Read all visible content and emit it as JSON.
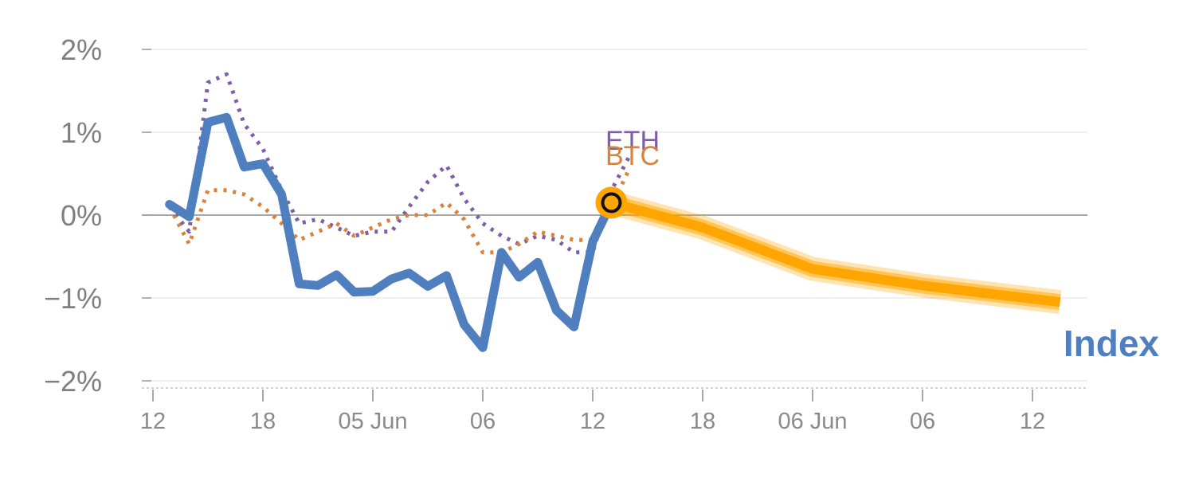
{
  "chart_data": {
    "type": "line",
    "title": "",
    "xlabel": "",
    "ylabel": "",
    "ylim": [
      -2,
      2
    ],
    "y_ticks": [
      {
        "value": 2,
        "label": "2%"
      },
      {
        "value": 1,
        "label": "1%"
      },
      {
        "value": 0,
        "label": "0%"
      },
      {
        "value": -1,
        "label": "−1%"
      },
      {
        "value": -2,
        "label": "−2%"
      }
    ],
    "x_range": [
      -0.1,
      8.5
    ],
    "x_ticks": [
      {
        "x": 0,
        "label": "12"
      },
      {
        "x": 1,
        "label": "18"
      },
      {
        "x": 2,
        "label": "05 Jun"
      },
      {
        "x": 3,
        "label": "06"
      },
      {
        "x": 4,
        "label": "12"
      },
      {
        "x": 5,
        "label": "18"
      },
      {
        "x": 6,
        "label": "06 Jun"
      },
      {
        "x": 7,
        "label": "06"
      },
      {
        "x": 8,
        "label": "12"
      }
    ],
    "grid": true,
    "series": [
      {
        "name": "ETH",
        "color": "#7e5fa6",
        "style": "dotted",
        "points": [
          [
            0.15,
            0.1
          ],
          [
            0.33,
            -0.2
          ],
          [
            0.5,
            1.6
          ],
          [
            0.67,
            1.7
          ],
          [
            0.83,
            1.1
          ],
          [
            1.0,
            0.8
          ],
          [
            1.17,
            0.3
          ],
          [
            1.33,
            -0.1
          ],
          [
            1.5,
            -0.05
          ],
          [
            1.67,
            -0.15
          ],
          [
            1.83,
            -0.25
          ],
          [
            2.0,
            -0.2
          ],
          [
            2.17,
            -0.2
          ],
          [
            2.33,
            0.1
          ],
          [
            2.5,
            0.4
          ],
          [
            2.67,
            0.6
          ],
          [
            2.83,
            0.2
          ],
          [
            3.0,
            -0.1
          ],
          [
            3.17,
            -0.25
          ],
          [
            3.33,
            -0.35
          ],
          [
            3.5,
            -0.25
          ],
          [
            3.67,
            -0.3
          ],
          [
            3.83,
            -0.45
          ],
          [
            4.0,
            -0.45
          ],
          [
            4.17,
            0.3
          ],
          [
            4.33,
            0.7
          ]
        ]
      },
      {
        "name": "BTC",
        "color": "#d9823b",
        "style": "dotted",
        "points": [
          [
            0.15,
            0.1
          ],
          [
            0.33,
            -0.35
          ],
          [
            0.5,
            0.3
          ],
          [
            0.67,
            0.3
          ],
          [
            0.83,
            0.25
          ],
          [
            1.0,
            0.1
          ],
          [
            1.17,
            -0.1
          ],
          [
            1.33,
            -0.3
          ],
          [
            1.5,
            -0.2
          ],
          [
            1.67,
            -0.1
          ],
          [
            1.83,
            -0.25
          ],
          [
            2.0,
            -0.15
          ],
          [
            2.17,
            -0.05
          ],
          [
            2.33,
            0.0
          ],
          [
            2.5,
            0.0
          ],
          [
            2.67,
            0.15
          ],
          [
            2.83,
            -0.05
          ],
          [
            3.0,
            -0.45
          ],
          [
            3.17,
            -0.45
          ],
          [
            3.33,
            -0.35
          ],
          [
            3.5,
            -0.2
          ],
          [
            3.67,
            -0.25
          ],
          [
            3.83,
            -0.3
          ],
          [
            4.0,
            -0.3
          ],
          [
            4.17,
            0.1
          ],
          [
            4.33,
            0.55
          ]
        ]
      },
      {
        "name": "Index",
        "color": "#4f7fbf",
        "style": "solid",
        "points": [
          [
            0.15,
            0.13
          ],
          [
            0.33,
            -0.02
          ],
          [
            0.5,
            1.12
          ],
          [
            0.67,
            1.18
          ],
          [
            0.83,
            0.58
          ],
          [
            1.0,
            0.62
          ],
          [
            1.17,
            0.25
          ],
          [
            1.33,
            -0.83
          ],
          [
            1.5,
            -0.85
          ],
          [
            1.67,
            -0.72
          ],
          [
            1.83,
            -0.93
          ],
          [
            2.0,
            -0.92
          ],
          [
            2.17,
            -0.77
          ],
          [
            2.33,
            -0.7
          ],
          [
            2.5,
            -0.86
          ],
          [
            2.67,
            -0.73
          ],
          [
            2.83,
            -1.32
          ],
          [
            3.0,
            -1.6
          ],
          [
            3.17,
            -0.45
          ],
          [
            3.33,
            -0.75
          ],
          [
            3.5,
            -0.57
          ],
          [
            3.67,
            -1.15
          ],
          [
            3.83,
            -1.35
          ],
          [
            4.0,
            -0.32
          ],
          [
            4.17,
            0.15
          ]
        ]
      }
    ],
    "forecast": {
      "series": "Index",
      "color": "#ffa500",
      "points": [
        [
          4.17,
          0.15
        ],
        [
          5.0,
          -0.15
        ],
        [
          6.0,
          -0.65
        ],
        [
          7.0,
          -0.85
        ],
        [
          8.25,
          -1.05
        ]
      ]
    },
    "current_marker": {
      "x": 4.17,
      "y": 0.15
    },
    "series_labels": {
      "ETH": "ETH",
      "BTC": "BTC",
      "Index": "Index"
    }
  }
}
